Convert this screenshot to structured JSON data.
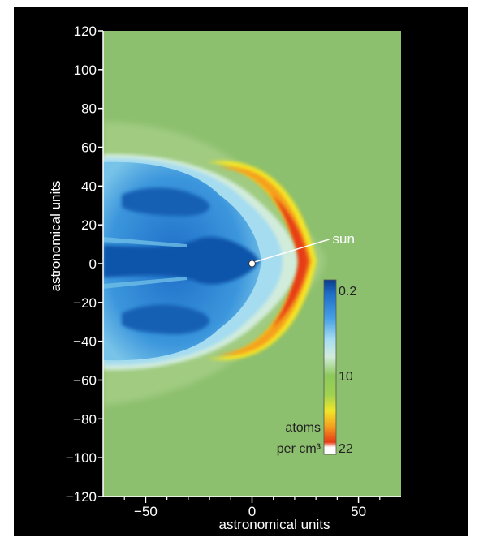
{
  "chart_data": {
    "type": "heatmap",
    "title": "",
    "xlabel": "astronomical units",
    "ylabel": "astronomical units",
    "xlim": [
      -70,
      70
    ],
    "ylim": [
      -120,
      120
    ],
    "xticks": [
      -50,
      0,
      50
    ],
    "xtick_labels": [
      "−50",
      "0",
      "50"
    ],
    "yticks": [
      120,
      100,
      80,
      60,
      40,
      20,
      0,
      -20,
      -40,
      -60,
      -80,
      -100,
      -120
    ],
    "ytick_labels": [
      "120",
      "100",
      "80",
      "60",
      "40",
      "20",
      "0",
      "−20",
      "−40",
      "−60",
      "−80",
      "−100",
      "−120"
    ],
    "background_value": 10,
    "annotation": {
      "text": "sun",
      "x": 0,
      "y": 0
    },
    "colorbar": {
      "label_lines": [
        "atoms",
        "per cm³"
      ],
      "tick_labels": [
        "0.2",
        "10",
        "22"
      ],
      "min": 0.2,
      "mid": 10,
      "max": 22,
      "colors": [
        "#0a3c8c",
        "#1e6ec8",
        "#46a0e6",
        "#a5dcf0",
        "#d2ecdc",
        "#8cc85a",
        "#a0d250",
        "#f0e628",
        "#f5a01e",
        "#e63c14",
        "#ffffff"
      ]
    },
    "features": [
      {
        "name": "bow arc (density maximum)",
        "value": 20,
        "x_at_axis": 22,
        "y_extent": [
          -48,
          48
        ]
      },
      {
        "name": "tail cavity (density minimum)",
        "value": 0.2,
        "x_range": [
          -70,
          10
        ],
        "y_extent": [
          -52,
          56
        ]
      }
    ]
  },
  "colors": {
    "frame": "#000000",
    "background": "#8cbf6e",
    "annotation": "#ffffff"
  }
}
